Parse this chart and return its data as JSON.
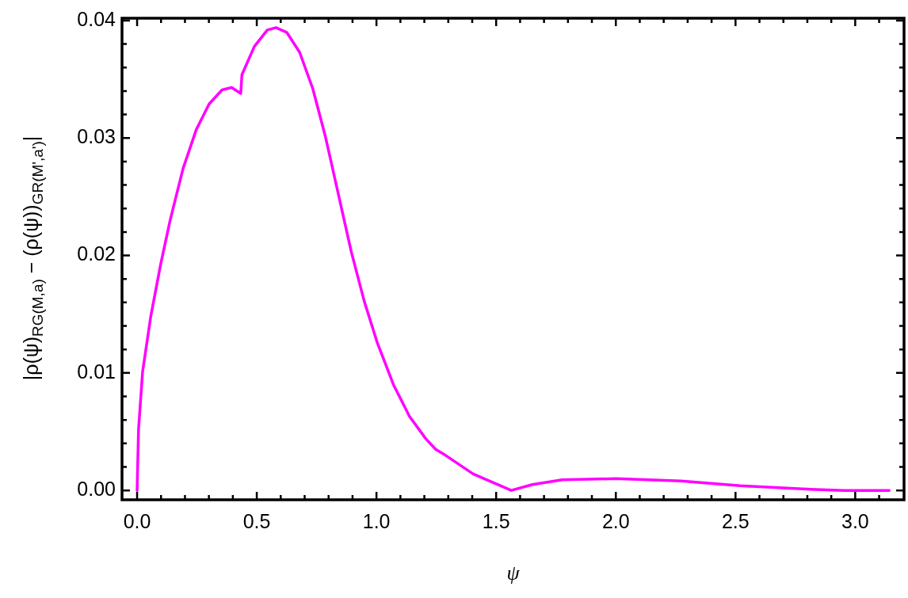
{
  "chart_data": {
    "type": "line",
    "xlabel": "ψ",
    "ylabel": "|ρ(ψ)$_{RG(M,a)}$ − (ρ(ψ))$_{GR(M',a')}$|",
    "x": [
      0,
      0.006,
      0.023,
      0.057,
      0.098,
      0.138,
      0.192,
      0.247,
      0.301,
      0.355,
      0.395,
      0.433,
      0.438,
      0.49,
      0.544,
      0.58,
      0.625,
      0.679,
      0.734,
      0.787,
      0.841,
      0.895,
      0.949,
      1.003,
      1.071,
      1.138,
      1.206,
      1.247,
      1.28,
      1.404,
      1.563,
      1.652,
      1.776,
      1.999,
      2.272,
      2.52,
      2.811,
      2.954,
      3.142
    ],
    "series": [
      {
        "color": "#ff00ff",
        "values": [
          0,
          0.0052,
          0.0101,
          0.0148,
          0.0192,
          0.023,
          0.0274,
          0.0307,
          0.0329,
          0.0341,
          0.0343,
          0.0338,
          0.0354,
          0.0378,
          0.0392,
          0.0394,
          0.039,
          0.0373,
          0.0342,
          0.0301,
          0.0252,
          0.0203,
          0.0161,
          0.0126,
          0.009,
          0.0063,
          0.0044,
          0.0035,
          0.0031,
          0.0014,
          0,
          0.0005,
          0.0009,
          0.001,
          0.0008,
          0.0004,
          0.0001,
          0,
          0
        ]
      }
    ],
    "xlim": [
      -0.063,
      3.204
    ],
    "ylim": [
      -0.0008,
      0.0402
    ],
    "xticks": [
      {
        "value": 0,
        "label": "0.0"
      },
      {
        "value": 0.1,
        "label": null
      },
      {
        "value": 0.2,
        "label": null
      },
      {
        "value": 0.3,
        "label": null
      },
      {
        "value": 0.4,
        "label": null
      },
      {
        "value": 0.5,
        "label": "0.5"
      },
      {
        "value": 0.6,
        "label": null
      },
      {
        "value": 0.7,
        "label": null
      },
      {
        "value": 0.8,
        "label": null
      },
      {
        "value": 0.9,
        "label": null
      },
      {
        "value": 1,
        "label": "1.0"
      },
      {
        "value": 1.1,
        "label": null
      },
      {
        "value": 1.2,
        "label": null
      },
      {
        "value": 1.3,
        "label": null
      },
      {
        "value": 1.4,
        "label": null
      },
      {
        "value": 1.5,
        "label": "1.5"
      },
      {
        "value": 1.6,
        "label": null
      },
      {
        "value": 1.7,
        "label": null
      },
      {
        "value": 1.8,
        "label": null
      },
      {
        "value": 1.9,
        "label": null
      },
      {
        "value": 2,
        "label": "2.0"
      },
      {
        "value": 2.1,
        "label": null
      },
      {
        "value": 2.2,
        "label": null
      },
      {
        "value": 2.3,
        "label": null
      },
      {
        "value": 2.4,
        "label": null
      },
      {
        "value": 2.5,
        "label": "2.5"
      },
      {
        "value": 2.6,
        "label": null
      },
      {
        "value": 2.7,
        "label": null
      },
      {
        "value": 2.8,
        "label": null
      },
      {
        "value": 2.9,
        "label": null
      },
      {
        "value": 3,
        "label": "3.0"
      },
      {
        "value": 3.1,
        "label": null
      }
    ],
    "yticks": [
      {
        "value": 0,
        "label": "0.00"
      },
      {
        "value": 0.002,
        "label": null
      },
      {
        "value": 0.004,
        "label": null
      },
      {
        "value": 0.006,
        "label": null
      },
      {
        "value": 0.008,
        "label": null
      },
      {
        "value": 0.01,
        "label": "0.01"
      },
      {
        "value": 0.012,
        "label": null
      },
      {
        "value": 0.014,
        "label": null
      },
      {
        "value": 0.016,
        "label": null
      },
      {
        "value": 0.018,
        "label": null
      },
      {
        "value": 0.02,
        "label": "0.02"
      },
      {
        "value": 0.022,
        "label": null
      },
      {
        "value": 0.024,
        "label": null
      },
      {
        "value": 0.026,
        "label": null
      },
      {
        "value": 0.028,
        "label": null
      },
      {
        "value": 0.03,
        "label": "0.03"
      },
      {
        "value": 0.032,
        "label": null
      },
      {
        "value": 0.034,
        "label": null
      },
      {
        "value": 0.036,
        "label": null
      },
      {
        "value": 0.038,
        "label": null
      },
      {
        "value": 0.04,
        "label": "0.04"
      }
    ],
    "marker": "none",
    "line_style": "solid"
  }
}
